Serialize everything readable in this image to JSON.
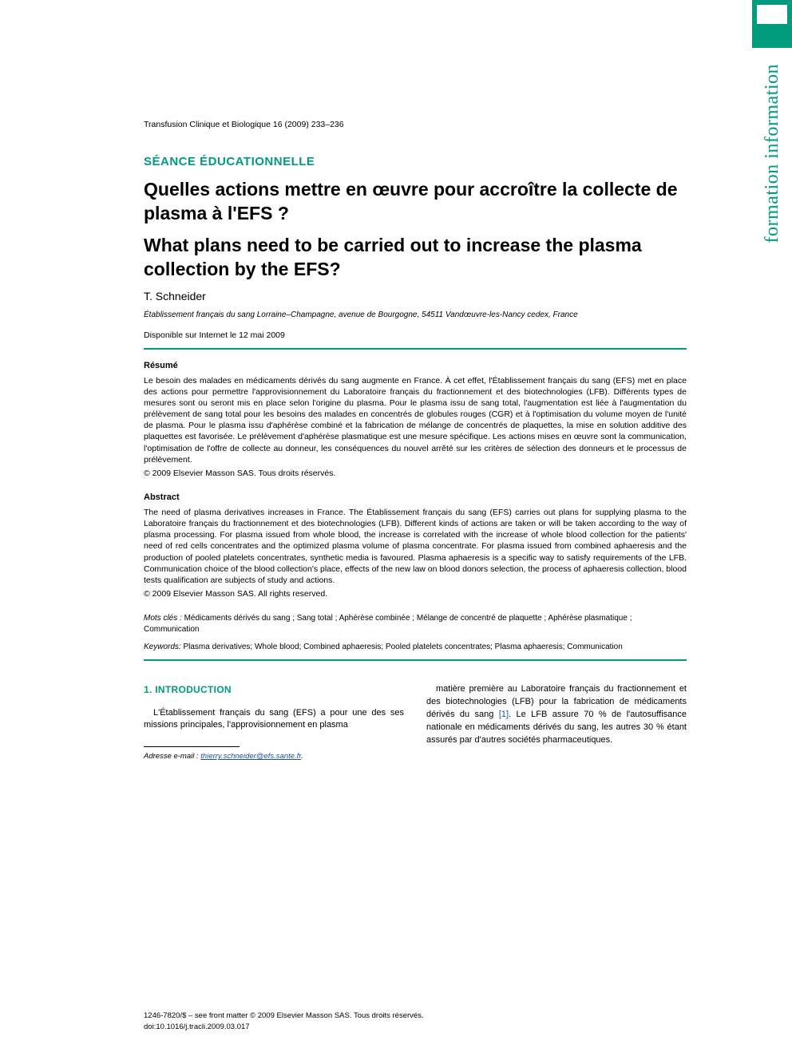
{
  "side_tab_label": "formation information",
  "journal_reference": "Transfusion Clinique et Biologique 16 (2009) 233–236",
  "section_label": "SÉANCE ÉDUCATIONNELLE",
  "title_fr": "Quelles actions mettre en œuvre pour accroître la collecte de plasma à l'EFS ?",
  "title_en": "What plans need to be carried out to increase the plasma collection by the EFS?",
  "author": "T. Schneider",
  "affiliation": "Établissement français du sang Lorraine–Champagne, avenue de Bourgogne, 54511 Vandœuvre-les-Nancy cedex, France",
  "online_date": "Disponible sur Internet le 12 mai 2009",
  "resume": {
    "heading": "Résumé",
    "body": "Le besoin des malades en médicaments dérivés du sang augmente en France. À cet effet, l'Établissement français du sang (EFS) met en place des actions pour permettre l'approvisionnement du Laboratoire français du fractionnement et des biotechnologies (LFB). Différents types de mesures sont ou seront mis en place selon l'origine du plasma. Pour le plasma issu de sang total, l'augmentation est liée à l'augmentation du prélèvement de sang total pour les besoins des malades en concentrés de globules rouges (CGR) et à l'optimisation du volume moyen de l'unité de plasma. Pour le plasma issu d'aphérèse combiné et la fabrication de mélange de concentrés de plaquettes, la mise en solution additive des plaquettes est favorisée. Le prélèvement d'aphérèse plasmatique est une mesure spécifique. Les actions mises en œuvre sont la communication, l'optimisation de l'offre de collecte au donneur, les conséquences du nouvel arrêté sur les critères de sélection des donneurs et le processus de prélèvement.",
    "copyright": "© 2009 Elsevier Masson SAS. Tous droits réservés."
  },
  "abstract": {
    "heading": "Abstract",
    "body": "The need of plasma derivatives increases in France. The Établissement français du sang (EFS) carries out plans for supplying plasma to the Laboratoire français du fractionnement et des biotechnologies (LFB). Different kinds of actions are taken or will be taken according to the way of plasma processing. For plasma issued from whole blood, the increase is correlated with the increase of whole blood collection for the patients' need of red cells concentrates and the optimized plasma volume of plasma concentrate. For plasma issued from combined aphaeresis and the production of pooled platelets concentrates, synthetic media is favoured. Plasma aphaeresis is a specific way to satisfy requirements of the LFB. Communication choice of the blood collection's place, effects of the new law on blood donors selection, the process of aphaeresis collection, blood tests qualification are subjects of study and actions.",
    "copyright": "© 2009 Elsevier Masson SAS. All rights reserved."
  },
  "mots_cles": {
    "label": "Mots clés :",
    "text": "Médicaments dérivés du sang ; Sang total ; Aphérèse combinée ; Mélange de concentré de plaquette ; Aphérèse plasmatique ; Communication"
  },
  "keywords": {
    "label": "Keywords:",
    "text": "Plasma derivatives; Whole blood; Combined aphaeresis; Pooled platelets concentrates; Plasma aphaeresis; Communication"
  },
  "introduction": {
    "heading": "1. INTRODUCTION",
    "col1": "L'Établissement français du sang (EFS) a pour une des ses missions principales, l'approvisionnement en plasma",
    "col2_part1": "matière première au Laboratoire français du fractionnement et des biotechnologies (LFB) pour la fabrication de médicaments dérivés du sang ",
    "ref1": "[1]",
    "col2_part2": ". Le LFB assure 70 % de l'autosuffisance nationale en médicaments dérivés du sang, les autres 30 % étant assurés par d'autres sociétés pharmaceutiques."
  },
  "email": {
    "label": "Adresse e-mail :",
    "address": "thierry.schneider@efs.sante.fr"
  },
  "footer": {
    "line1": "1246-7820/$ – see front matter © 2009 Elsevier Masson SAS. Tous droits réservés.",
    "line2": "doi:10.1016/j.tracli.2009.03.017"
  },
  "colors": {
    "accent": "#009b7c",
    "link": "#1a4fa8",
    "text": "#000000",
    "background": "#ffffff"
  }
}
